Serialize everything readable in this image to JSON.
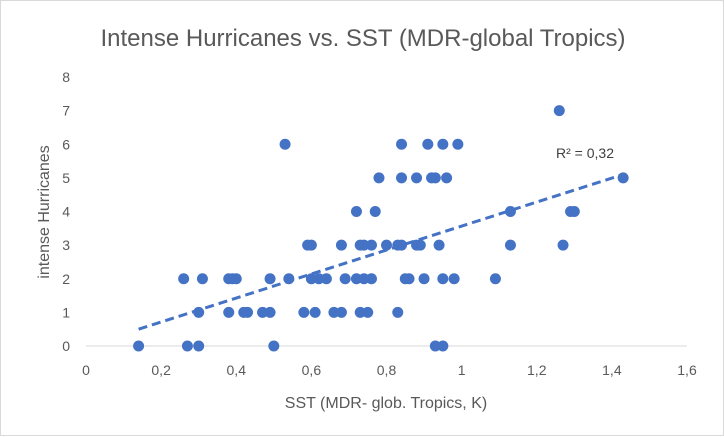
{
  "chart_data": {
    "type": "scatter",
    "title": "Intense Hurricanes vs. SST (MDR-global Tropics)",
    "xlabel": "SST (MDR- glob. Tropics, K)",
    "ylabel": "intense Hurricanes",
    "xlim": [
      0,
      1.6
    ],
    "ylim": [
      0,
      8
    ],
    "x_ticks": [
      "0",
      "0,2",
      "0,4",
      "0,6",
      "0,8",
      "1",
      "1,2",
      "1,4",
      "1,6"
    ],
    "y_ticks": [
      "0",
      "1",
      "2",
      "3",
      "4",
      "5",
      "6",
      "7",
      "8"
    ],
    "series": [
      {
        "name": "intense Hurricanes",
        "points": [
          [
            0.14,
            0
          ],
          [
            0.27,
            0
          ],
          [
            0.3,
            0
          ],
          [
            0.5,
            0
          ],
          [
            0.93,
            0
          ],
          [
            0.95,
            0
          ],
          [
            0.3,
            1
          ],
          [
            0.38,
            1
          ],
          [
            0.42,
            1
          ],
          [
            0.43,
            1
          ],
          [
            0.47,
            1
          ],
          [
            0.49,
            1
          ],
          [
            0.58,
            1
          ],
          [
            0.61,
            1
          ],
          [
            0.66,
            1
          ],
          [
            0.68,
            1
          ],
          [
            0.73,
            1
          ],
          [
            0.75,
            1
          ],
          [
            0.83,
            1
          ],
          [
            0.26,
            2
          ],
          [
            0.31,
            2
          ],
          [
            0.38,
            2
          ],
          [
            0.39,
            2
          ],
          [
            0.4,
            2
          ],
          [
            0.49,
            2
          ],
          [
            0.54,
            2
          ],
          [
            0.6,
            2
          ],
          [
            0.62,
            2
          ],
          [
            0.64,
            2
          ],
          [
            0.69,
            2
          ],
          [
            0.72,
            2
          ],
          [
            0.74,
            2
          ],
          [
            0.76,
            2
          ],
          [
            0.85,
            2
          ],
          [
            0.86,
            2
          ],
          [
            0.9,
            2
          ],
          [
            0.95,
            2
          ],
          [
            0.98,
            2
          ],
          [
            1.09,
            2
          ],
          [
            0.59,
            3
          ],
          [
            0.6,
            3
          ],
          [
            0.68,
            3
          ],
          [
            0.73,
            3
          ],
          [
            0.74,
            3
          ],
          [
            0.76,
            3
          ],
          [
            0.8,
            3
          ],
          [
            0.83,
            3
          ],
          [
            0.84,
            3
          ],
          [
            0.88,
            3
          ],
          [
            0.89,
            3
          ],
          [
            0.94,
            3
          ],
          [
            1.13,
            3
          ],
          [
            1.27,
            3
          ],
          [
            0.72,
            4
          ],
          [
            0.77,
            4
          ],
          [
            1.13,
            4
          ],
          [
            1.29,
            4
          ],
          [
            1.3,
            4
          ],
          [
            0.78,
            5
          ],
          [
            0.84,
            5
          ],
          [
            0.88,
            5
          ],
          [
            0.92,
            5
          ],
          [
            0.93,
            5
          ],
          [
            0.96,
            5
          ],
          [
            1.43,
            5
          ],
          [
            0.53,
            6
          ],
          [
            0.84,
            6
          ],
          [
            0.91,
            6
          ],
          [
            0.95,
            6
          ],
          [
            0.99,
            6
          ],
          [
            1.26,
            7
          ]
        ]
      }
    ],
    "trendline": {
      "type": "linear",
      "x_range": [
        0.14,
        1.43
      ],
      "y_start": 0.5,
      "y_end": 5.1,
      "label": "R² = 0,32"
    },
    "colors": {
      "marker": "#4472c4",
      "text": "#595959",
      "axis": "#d9d9d9"
    }
  }
}
